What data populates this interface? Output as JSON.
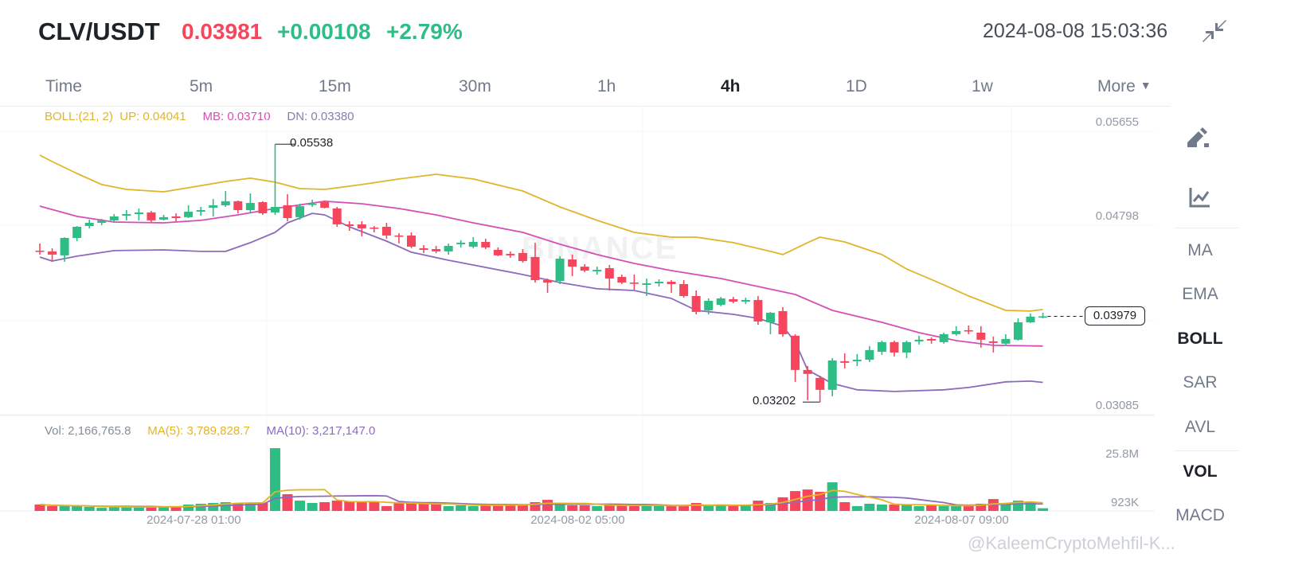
{
  "header": {
    "symbol": "CLV/USDT",
    "last_price": "0.03981",
    "change": "+0.00108",
    "change_pct": "+2.79%",
    "datetime": "2024-08-08 15:03:36",
    "collapse_icon": "collapse-arrows-icon"
  },
  "tabs": [
    {
      "label": "Time"
    },
    {
      "label": "5m"
    },
    {
      "label": "15m"
    },
    {
      "label": "30m"
    },
    {
      "label": "1h"
    },
    {
      "label": "4h",
      "active": true
    },
    {
      "label": "1D"
    },
    {
      "label": "1w"
    },
    {
      "label": "More",
      "icon": "caret-down-icon"
    }
  ],
  "sidebar": {
    "tools": [
      {
        "icon": "draw-pen-icon"
      },
      {
        "icon": "indicator-chart-icon"
      }
    ],
    "indicators": [
      {
        "label": "MA"
      },
      {
        "label": "EMA"
      },
      {
        "label": "BOLL",
        "active": true
      },
      {
        "label": "SAR"
      },
      {
        "label": "AVL"
      },
      {
        "label": "VOL",
        "active": true
      },
      {
        "label": "MACD"
      }
    ]
  },
  "legend": {
    "boll": "BOLL:(21, 2)",
    "up": "UP: 0.04041",
    "mb": "MB: 0.03710",
    "dn": "DN: 0.03380"
  },
  "volume_legend": {
    "vol": "Vol: 2,166,765.8",
    "ma5": "MA(5): 3,789,828.7",
    "ma10": "MA(10): 3,217,147.0"
  },
  "watermarks": {
    "brand": "BINANCE",
    "user": "@KaleemCryptoMehfil-K..."
  },
  "colors": {
    "up": "#2ebd85",
    "down": "#f6465d",
    "boll_up": "#e0b52a",
    "boll_mb": "#d54fb5",
    "boll_dn": "#8a6bbd",
    "vol_ma5": "#e6b422",
    "vol_ma10": "#8c6cc0"
  },
  "chart_data": {
    "type": "candlestick",
    "interval": "4h",
    "price_axis": {
      "ticks": [
        "0.05655",
        "0.04798",
        "0.03085"
      ],
      "range": [
        0.03085,
        0.05655
      ]
    },
    "last_price_label": "0.03979",
    "annotations": {
      "high": "0.05538",
      "low": "0.03202"
    },
    "x_tick_labels": [
      {
        "candle": 13,
        "label": "2024-07-28 01:00"
      },
      {
        "candle": 44,
        "label": "2024-08-02 05:00"
      },
      {
        "candle": 75,
        "label": "2024-08-07 09:00"
      }
    ],
    "candles_ohlc": [
      [
        0.04574,
        0.04639,
        0.04538,
        0.04567
      ],
      [
        0.04567,
        0.04596,
        0.04473,
        0.04538
      ],
      [
        0.04531,
        0.04695,
        0.04473,
        0.04689
      ],
      [
        0.04689,
        0.04797,
        0.0466,
        0.0479
      ],
      [
        0.04797,
        0.04855,
        0.04776,
        0.04826
      ],
      [
        0.04826,
        0.04862,
        0.04804,
        0.04848
      ],
      [
        0.04848,
        0.04905,
        0.04826,
        0.04884
      ],
      [
        0.04891,
        0.04941,
        0.04848,
        0.04905
      ],
      [
        0.04905,
        0.04956,
        0.04848,
        0.0492
      ],
      [
        0.0492,
        0.04934,
        0.04833,
        0.04848
      ],
      [
        0.04855,
        0.04898,
        0.04848,
        0.04877
      ],
      [
        0.04884,
        0.04912,
        0.0484,
        0.04869
      ],
      [
        0.04877,
        0.04985,
        0.04869,
        0.04927
      ],
      [
        0.04927,
        0.0497,
        0.04891,
        0.04941
      ],
      [
        0.04963,
        0.05042,
        0.04884,
        0.04985
      ],
      [
        0.04985,
        0.05114,
        0.0497,
        0.05021
      ],
      [
        0.05021,
        0.05028,
        0.04912,
        0.04941
      ],
      [
        0.04941,
        0.05092,
        0.0492,
        0.05006
      ],
      [
        0.05013,
        0.05021,
        0.04898,
        0.04912
      ],
      [
        0.0492,
        0.05538,
        0.04898,
        0.0497
      ],
      [
        0.04985,
        0.05085,
        0.0484,
        0.04869
      ],
      [
        0.04877,
        0.04999,
        0.04855,
        0.04977
      ],
      [
        0.04992,
        0.05035,
        0.0497,
        0.04999
      ],
      [
        0.05013,
        0.05028,
        0.04956,
        0.04963
      ],
      [
        0.04956,
        0.0497,
        0.0479,
        0.04812
      ],
      [
        0.04812,
        0.0484,
        0.04754,
        0.04797
      ],
      [
        0.04812,
        0.0484,
        0.04703,
        0.04776
      ],
      [
        0.04783,
        0.04797,
        0.04739,
        0.04776
      ],
      [
        0.0479,
        0.04826,
        0.04682,
        0.04711
      ],
      [
        0.04711,
        0.04732,
        0.04639,
        0.04703
      ],
      [
        0.04711,
        0.04739,
        0.04596,
        0.0461
      ],
      [
        0.04596,
        0.04624,
        0.04552,
        0.04581
      ],
      [
        0.04588,
        0.04617,
        0.04552,
        0.04567
      ],
      [
        0.04567,
        0.04639,
        0.04538,
        0.04617
      ],
      [
        0.04632,
        0.04668,
        0.04603,
        0.04646
      ],
      [
        0.0461,
        0.04696,
        0.04596,
        0.04653
      ],
      [
        0.04653,
        0.04682,
        0.04588,
        0.04603
      ],
      [
        0.04581,
        0.04603,
        0.04524,
        0.04531
      ],
      [
        0.04545,
        0.04567,
        0.04509,
        0.04531
      ],
      [
        0.04552,
        0.04588,
        0.04465,
        0.0448
      ],
      [
        0.04516,
        0.04646,
        0.04285,
        0.04307
      ],
      [
        0.04307,
        0.04321,
        0.04191,
        0.04285
      ],
      [
        0.04299,
        0.04524,
        0.04271,
        0.04501
      ],
      [
        0.04494,
        0.04538,
        0.04343,
        0.04429
      ],
      [
        0.04429,
        0.04451,
        0.04379,
        0.04393
      ],
      [
        0.04386,
        0.04429,
        0.04357,
        0.044
      ],
      [
        0.04415,
        0.04444,
        0.04213,
        0.04321
      ],
      [
        0.04336,
        0.04357,
        0.04271,
        0.04285
      ],
      [
        0.04285,
        0.04357,
        0.0422,
        0.04278
      ],
      [
        0.04264,
        0.04321,
        0.04163,
        0.04278
      ],
      [
        0.04278,
        0.04314,
        0.04249,
        0.04292
      ],
      [
        0.04292,
        0.04307,
        0.04191,
        0.04271
      ],
      [
        0.04271,
        0.04307,
        0.04148,
        0.04163
      ],
      [
        0.04163,
        0.04213,
        0.03997,
        0.04019
      ],
      [
        0.04033,
        0.04141,
        0.03997,
        0.04119
      ],
      [
        0.04083,
        0.04155,
        0.04069,
        0.04141
      ],
      [
        0.04134,
        0.04155,
        0.04098,
        0.04112
      ],
      [
        0.04112,
        0.04148,
        0.04091,
        0.04127
      ],
      [
        0.04127,
        0.04163,
        0.03903,
        0.03932
      ],
      [
        0.03925,
        0.04019,
        0.03817,
        0.04011
      ],
      [
        0.04026,
        0.04062,
        0.03795,
        0.03817
      ],
      [
        0.03803,
        0.03817,
        0.03385,
        0.03493
      ],
      [
        0.03493,
        0.03529,
        0.03219,
        0.03457
      ],
      [
        0.03421,
        0.03442,
        0.03202,
        0.03313
      ],
      [
        0.03313,
        0.03601,
        0.03255,
        0.03579
      ],
      [
        0.03572,
        0.03644,
        0.03507,
        0.03558
      ],
      [
        0.03572,
        0.03637,
        0.03529,
        0.03586
      ],
      [
        0.03586,
        0.03709,
        0.03565,
        0.03673
      ],
      [
        0.03658,
        0.03759,
        0.0363,
        0.03745
      ],
      [
        0.03745,
        0.03759,
        0.03615,
        0.03651
      ],
      [
        0.03651,
        0.03759,
        0.03601,
        0.03745
      ],
      [
        0.03752,
        0.03803,
        0.03723,
        0.03767
      ],
      [
        0.03774,
        0.03788,
        0.03731,
        0.03759
      ],
      [
        0.03745,
        0.03831,
        0.03731,
        0.03817
      ],
      [
        0.03817,
        0.03889,
        0.03803,
        0.03846
      ],
      [
        0.03853,
        0.03896,
        0.03817,
        0.03846
      ],
      [
        0.03831,
        0.03889,
        0.03695,
        0.03767
      ],
      [
        0.03752,
        0.03795,
        0.03651,
        0.03738
      ],
      [
        0.03731,
        0.03817,
        0.03709,
        0.03774
      ],
      [
        0.03767,
        0.03961,
        0.03759,
        0.03925
      ],
      [
        0.03925,
        0.04004,
        0.03918,
        0.03976
      ],
      [
        0.03976,
        0.04011,
        0.03961,
        0.03979
      ]
    ],
    "bollinger": {
      "up": [
        [
          0,
          0.05439
        ],
        [
          1,
          0.05381
        ],
        [
          3,
          0.05273
        ],
        [
          5,
          0.05173
        ],
        [
          7,
          0.05129
        ],
        [
          10,
          0.05107
        ],
        [
          12,
          0.05144
        ],
        [
          15,
          0.05201
        ],
        [
          17,
          0.0523
        ],
        [
          19,
          0.05194
        ],
        [
          21,
          0.05136
        ],
        [
          23,
          0.05129
        ],
        [
          26,
          0.05173
        ],
        [
          29,
          0.05223
        ],
        [
          32,
          0.05266
        ],
        [
          35,
          0.05223
        ],
        [
          39,
          0.05114
        ],
        [
          42,
          0.0497
        ],
        [
          45,
          0.04848
        ],
        [
          48,
          0.04739
        ],
        [
          51,
          0.04696
        ],
        [
          53,
          0.04696
        ],
        [
          56,
          0.04646
        ],
        [
          59,
          0.04567
        ],
        [
          60,
          0.04538
        ],
        [
          62,
          0.04646
        ],
        [
          63,
          0.04696
        ],
        [
          65,
          0.04653
        ],
        [
          68,
          0.04538
        ],
        [
          70,
          0.04408
        ],
        [
          73,
          0.04264
        ],
        [
          75,
          0.04163
        ],
        [
          78,
          0.04033
        ],
        [
          80,
          0.04026
        ],
        [
          81,
          0.04041
        ]
      ],
      "mb": [
        [
          0,
          0.04977
        ],
        [
          3,
          0.04884
        ],
        [
          6,
          0.04833
        ],
        [
          10,
          0.04826
        ],
        [
          13,
          0.04848
        ],
        [
          16,
          0.04898
        ],
        [
          19,
          0.04956
        ],
        [
          23,
          0.05021
        ],
        [
          26,
          0.04999
        ],
        [
          29,
          0.04956
        ],
        [
          32,
          0.04898
        ],
        [
          35,
          0.04826
        ],
        [
          39,
          0.04739
        ],
        [
          42,
          0.04632
        ],
        [
          45,
          0.04538
        ],
        [
          48,
          0.04458
        ],
        [
          51,
          0.04393
        ],
        [
          55,
          0.04321
        ],
        [
          58,
          0.04249
        ],
        [
          61,
          0.04177
        ],
        [
          64,
          0.04033
        ],
        [
          68,
          0.03925
        ],
        [
          71,
          0.03831
        ],
        [
          74,
          0.03759
        ],
        [
          77,
          0.03716
        ],
        [
          81,
          0.0371
        ]
      ],
      "dn": [
        [
          0,
          0.04516
        ],
        [
          1,
          0.0448
        ],
        [
          3,
          0.04524
        ],
        [
          6,
          0.04574
        ],
        [
          10,
          0.04581
        ],
        [
          13,
          0.04567
        ],
        [
          15,
          0.04567
        ],
        [
          17,
          0.04646
        ],
        [
          19,
          0.04739
        ],
        [
          20,
          0.04826
        ],
        [
          22,
          0.04912
        ],
        [
          23,
          0.04898
        ],
        [
          25,
          0.0479
        ],
        [
          28,
          0.0466
        ],
        [
          30,
          0.0456
        ],
        [
          33,
          0.04487
        ],
        [
          35,
          0.04444
        ],
        [
          39,
          0.04357
        ],
        [
          42,
          0.04285
        ],
        [
          45,
          0.04228
        ],
        [
          48,
          0.04213
        ],
        [
          51,
          0.04141
        ],
        [
          53,
          0.04033
        ],
        [
          56,
          0.03997
        ],
        [
          58,
          0.03961
        ],
        [
          60,
          0.03889
        ],
        [
          61,
          0.03745
        ],
        [
          62,
          0.03493
        ],
        [
          64,
          0.0337
        ],
        [
          66,
          0.03313
        ],
        [
          69,
          0.03298
        ],
        [
          73,
          0.03313
        ],
        [
          75,
          0.03334
        ],
        [
          78,
          0.03385
        ],
        [
          80,
          0.03392
        ],
        [
          81,
          0.0338
        ]
      ]
    },
    "volume": {
      "unit": "M",
      "ticks": [
        "25.8M",
        "923K"
      ],
      "values": [
        4.1,
        3.3,
        3.3,
        3.3,
        2.9,
        2.4,
        2.9,
        2.9,
        2.9,
        2.9,
        2.9,
        2.9,
        4.1,
        4.5,
        4.9,
        5.3,
        4.9,
        4.9,
        4.9,
        33.0,
        9.4,
        6.1,
        4.9,
        5.3,
        6.1,
        5.7,
        5.7,
        5.3,
        3.3,
        4.9,
        4.9,
        4.5,
        4.5,
        3.3,
        3.7,
        3.3,
        4.1,
        4.1,
        4.1,
        3.7,
        5.3,
        6.5,
        4.1,
        3.7,
        3.7,
        3.3,
        4.1,
        3.7,
        3.3,
        3.7,
        3.3,
        3.7,
        3.7,
        4.9,
        3.3,
        3.7,
        3.3,
        3.7,
        6.1,
        4.9,
        7.8,
        11.0,
        11.8,
        10.6,
        15.5,
        5.3,
        3.3,
        4.5,
        4.1,
        4.1,
        4.1,
        3.3,
        3.7,
        3.3,
        3.3,
        4.1,
        4.5,
        6.9,
        4.5,
        6.1,
        5.3,
        2.2
      ]
    }
  }
}
